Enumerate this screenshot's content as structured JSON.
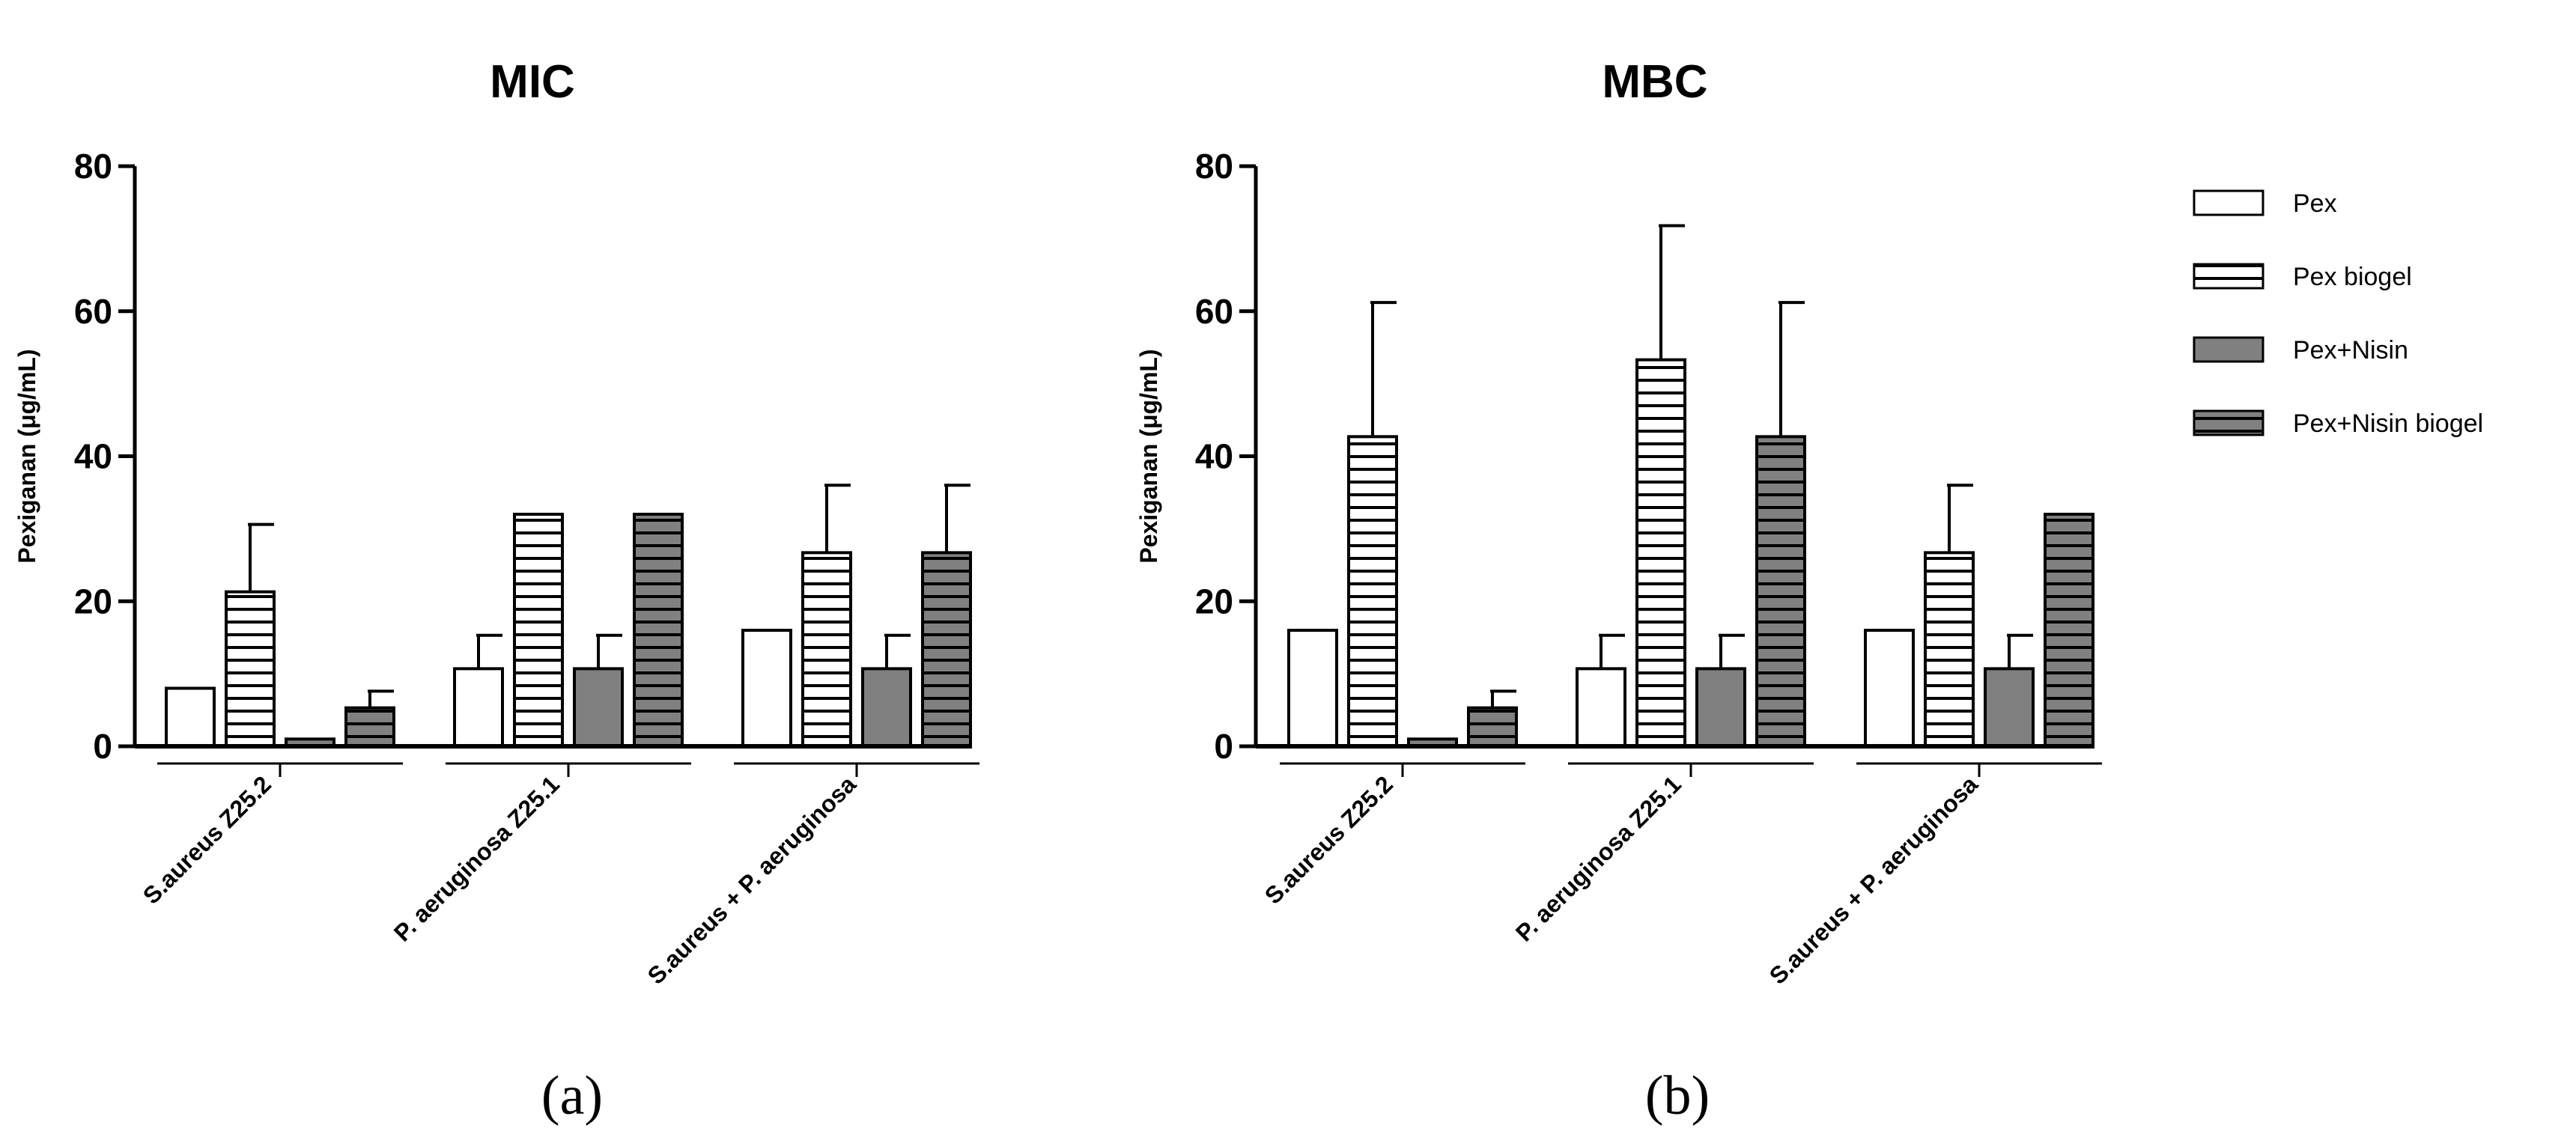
{
  "legend": {
    "entries": [
      "Pex",
      "Pex biogel",
      "Pex+Nisin",
      "Pex+Nisin biogel"
    ],
    "position": "right"
  },
  "chart_data": [
    {
      "type": "bar",
      "title": "MIC",
      "panel_label": "(a)",
      "xlabel": "",
      "ylabel": "Pexiganan (μg/mL)",
      "ylim": [
        0,
        80
      ],
      "yticks": [
        "0",
        "20",
        "40",
        "60",
        "80"
      ],
      "categories": [
        "S.aureus Z25.2",
        "P. aeruginosa Z25.1",
        "S.aureus + P. aeruginosa"
      ],
      "series": [
        {
          "name": "Pex",
          "values": [
            8,
            10.7,
            16
          ],
          "errors": [
            0,
            4.6,
            0
          ]
        },
        {
          "name": "Pex biogel",
          "values": [
            21.3,
            32,
            26.7
          ],
          "errors": [
            9.3,
            0,
            9.3
          ]
        },
        {
          "name": "Pex+Nisin",
          "values": [
            1,
            10.7,
            10.7
          ],
          "errors": [
            0,
            4.6,
            4.6
          ]
        },
        {
          "name": "Pex+Nisin biogel",
          "values": [
            5.3,
            32,
            26.7
          ],
          "errors": [
            2.3,
            0,
            9.3
          ]
        }
      ]
    },
    {
      "type": "bar",
      "title": "MBC",
      "panel_label": "(b)",
      "xlabel": "",
      "ylabel": "Pexiganan (μg/mL)",
      "ylim": [
        0,
        80
      ],
      "yticks": [
        "0",
        "20",
        "40",
        "60",
        "80"
      ],
      "categories": [
        "S.aureus Z25.2",
        "P. aeruginosa Z25.1",
        "S.aureus + P. aeruginosa"
      ],
      "series": [
        {
          "name": "Pex",
          "values": [
            16,
            10.7,
            16
          ],
          "errors": [
            0,
            4.6,
            0
          ]
        },
        {
          "name": "Pex biogel",
          "values": [
            42.7,
            53.3,
            26.7
          ],
          "errors": [
            18.5,
            18.5,
            9.3
          ]
        },
        {
          "name": "Pex+Nisin",
          "values": [
            1,
            10.7,
            10.7
          ],
          "errors": [
            0,
            4.6,
            4.6
          ]
        },
        {
          "name": "Pex+Nisin biogel",
          "values": [
            5.3,
            42.7,
            32
          ],
          "errors": [
            2.3,
            18.5,
            0
          ]
        }
      ]
    }
  ],
  "colors": {
    "white_fill": "#ffffff",
    "dark_fill": "#808080",
    "line": "#000000"
  }
}
